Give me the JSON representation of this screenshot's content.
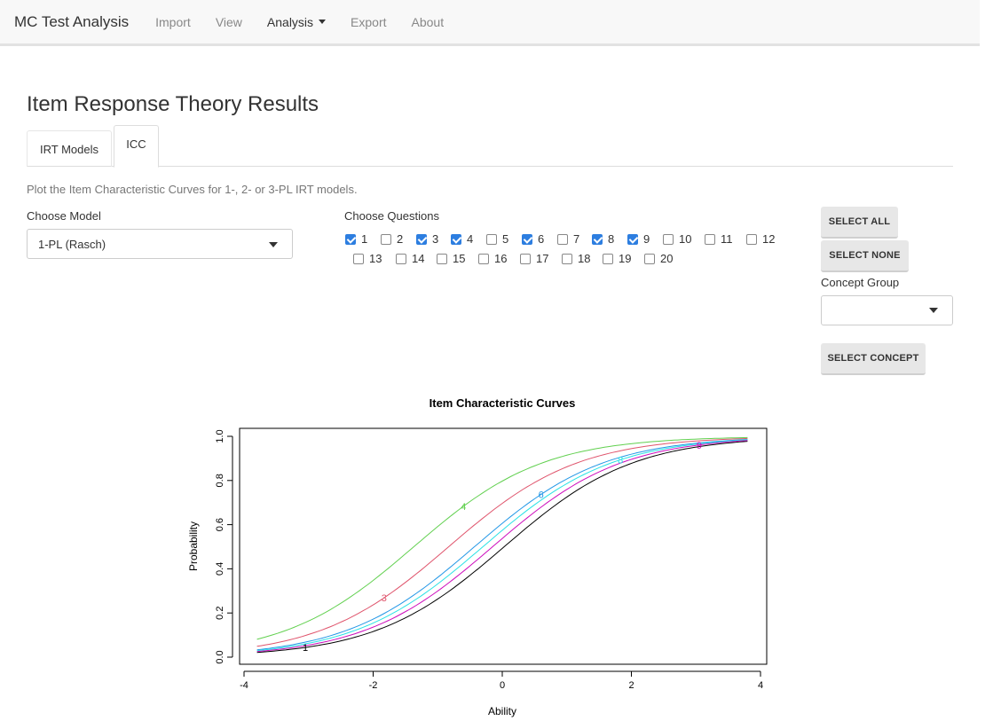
{
  "navbar": {
    "brand": "MC Test Analysis",
    "items": [
      "Import",
      "View",
      "Analysis",
      "Export",
      "About"
    ]
  },
  "page_title": "Item Response Theory Results",
  "tabs": [
    "IRT Models",
    "ICC"
  ],
  "description": "Plot the Item Characteristic Curves for 1-, 2- or 3-PL IRT models.",
  "model": {
    "label": "Choose Model",
    "value": "1-PL (Rasch)"
  },
  "questions": {
    "label": "Choose Questions",
    "items": [
      {
        "label": "1",
        "checked": true
      },
      {
        "label": "2",
        "checked": false
      },
      {
        "label": "3",
        "checked": true
      },
      {
        "label": "4",
        "checked": true
      },
      {
        "label": "5",
        "checked": false
      },
      {
        "label": "6",
        "checked": true
      },
      {
        "label": "7",
        "checked": false
      },
      {
        "label": "8",
        "checked": true
      },
      {
        "label": "9",
        "checked": true
      },
      {
        "label": "10",
        "checked": false
      },
      {
        "label": "11",
        "checked": false
      },
      {
        "label": "12",
        "checked": false
      },
      {
        "label": "13",
        "checked": false
      },
      {
        "label": "14",
        "checked": false
      },
      {
        "label": "15",
        "checked": false
      },
      {
        "label": "16",
        "checked": false
      },
      {
        "label": "17",
        "checked": false
      },
      {
        "label": "18",
        "checked": false
      },
      {
        "label": "19",
        "checked": false
      },
      {
        "label": "20",
        "checked": false
      }
    ]
  },
  "buttons": {
    "select_all": "SELECT ALL",
    "select_none": "SELECT NONE",
    "select_concept": "SELECT CONCEPT"
  },
  "concept_group": {
    "label": "Concept Group",
    "value": ""
  },
  "chart_data": {
    "type": "line",
    "title": "Item Characteristic Curves",
    "xlabel": "Ability",
    "ylabel": "Probability",
    "xlim": [
      -4,
      4
    ],
    "ylim": [
      0,
      1
    ],
    "xticks": [
      "-4",
      "-2",
      "0",
      "2",
      "4"
    ],
    "yticks": [
      "0.0",
      "0.2",
      "0.4",
      "0.6",
      "0.8",
      "1.0"
    ],
    "x_range": [
      -3.8,
      3.8
    ],
    "series": [
      {
        "name": "1",
        "difficulty": 0.03,
        "color": "#000000",
        "label_x": -3.05
      },
      {
        "name": "3",
        "difficulty": -0.83,
        "color": "#df536b",
        "label_x": -1.83
      },
      {
        "name": "4",
        "difficulty": -1.37,
        "color": "#61d04f",
        "label_x": -0.6
      },
      {
        "name": "6",
        "difficulty": -0.43,
        "color": "#2297e6",
        "label_x": 0.6
      },
      {
        "name": "8",
        "difficulty": -0.3,
        "color": "#28e2e5",
        "label_x": 1.83
      },
      {
        "name": "9",
        "difficulty": -0.15,
        "color": "#cd0bbc",
        "label_x": 3.05
      }
    ]
  }
}
